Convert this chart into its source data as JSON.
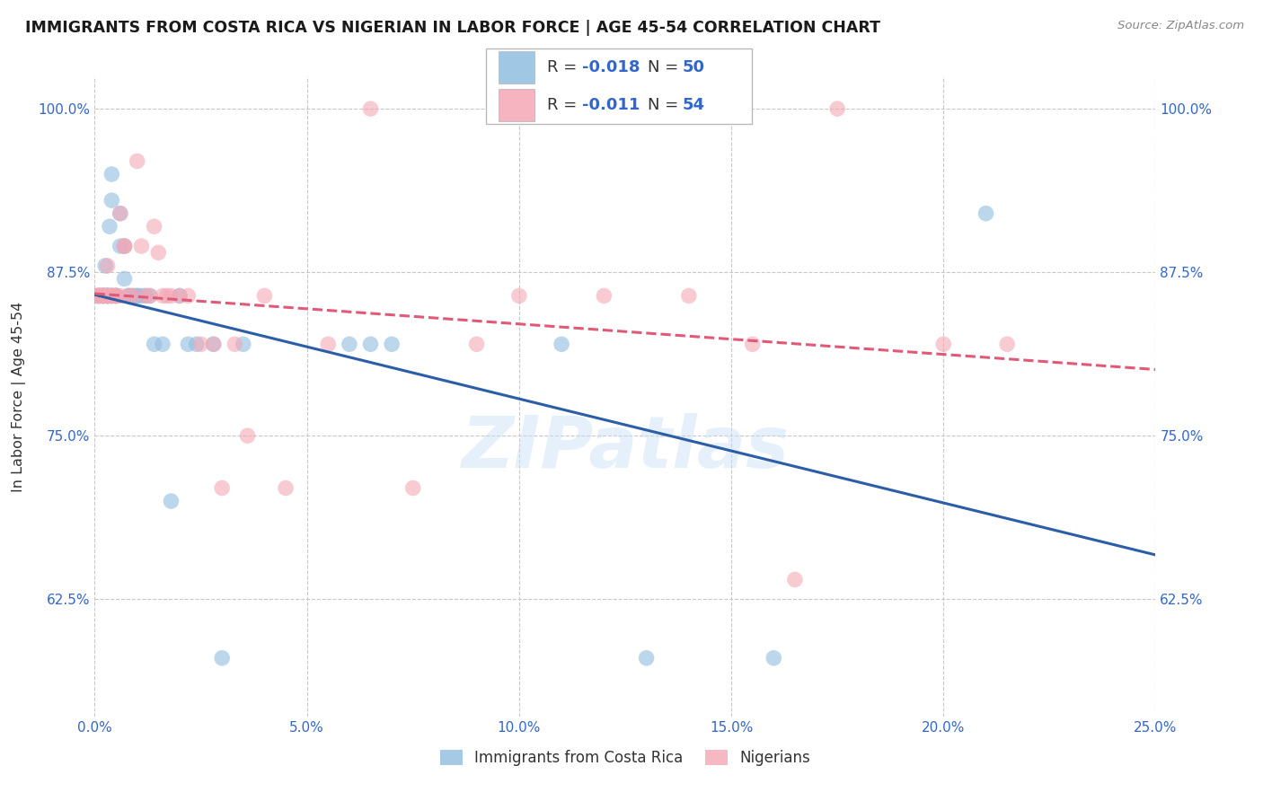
{
  "title": "IMMIGRANTS FROM COSTA RICA VS NIGERIAN IN LABOR FORCE | AGE 45-54 CORRELATION CHART",
  "source": "Source: ZipAtlas.com",
  "ylabel": "In Labor Force | Age 45-54",
  "xlim": [
    0.0,
    0.25
  ],
  "ylim": [
    0.535,
    1.025
  ],
  "xticks": [
    0.0,
    0.05,
    0.1,
    0.15,
    0.2,
    0.25
  ],
  "xticklabels": [
    "0.0%",
    "5.0%",
    "10.0%",
    "15.0%",
    "20.0%",
    "25.0%"
  ],
  "yticks": [
    0.625,
    0.75,
    0.875,
    1.0
  ],
  "yticklabels": [
    "62.5%",
    "75.0%",
    "87.5%",
    "100.0%"
  ],
  "watermark": "ZIPatlas",
  "costa_rica_color": "#90bde0",
  "nigerian_color": "#f4a7b5",
  "costa_rica_line_color": "#2b5ea7",
  "nigerian_line_color": "#e05a78",
  "background_color": "#ffffff",
  "grid_color": "#c8c8c8",
  "title_color": "#1a1a1a",
  "axis_label_color": "#333333",
  "tick_label_color": "#3366cc",
  "r_costa_rica": -0.018,
  "n_costa_rica": 50,
  "r_nigerian": -0.011,
  "n_nigerian": 54,
  "costa_rica_x": [
    0.0005,
    0.001,
    0.001,
    0.0015,
    0.002,
    0.002,
    0.002,
    0.002,
    0.0025,
    0.003,
    0.003,
    0.003,
    0.003,
    0.003,
    0.0035,
    0.004,
    0.004,
    0.004,
    0.004,
    0.005,
    0.005,
    0.005,
    0.006,
    0.006,
    0.007,
    0.007,
    0.008,
    0.008,
    0.009,
    0.01,
    0.01,
    0.011,
    0.012,
    0.013,
    0.014,
    0.016,
    0.018,
    0.02,
    0.022,
    0.024,
    0.028,
    0.03,
    0.035,
    0.06,
    0.065,
    0.07,
    0.11,
    0.13,
    0.16,
    0.21
  ],
  "costa_rica_y": [
    0.857,
    0.857,
    0.857,
    0.857,
    0.857,
    0.857,
    0.857,
    0.857,
    0.88,
    0.857,
    0.857,
    0.857,
    0.857,
    0.857,
    0.91,
    0.857,
    0.857,
    0.93,
    0.95,
    0.857,
    0.857,
    0.857,
    0.92,
    0.895,
    0.895,
    0.87,
    0.857,
    0.857,
    0.857,
    0.857,
    0.857,
    0.857,
    0.857,
    0.857,
    0.82,
    0.82,
    0.7,
    0.857,
    0.82,
    0.82,
    0.82,
    0.58,
    0.82,
    0.82,
    0.82,
    0.82,
    0.82,
    0.58,
    0.58,
    0.92
  ],
  "nigerian_x": [
    0.0005,
    0.001,
    0.001,
    0.001,
    0.002,
    0.002,
    0.002,
    0.002,
    0.003,
    0.003,
    0.003,
    0.003,
    0.003,
    0.004,
    0.004,
    0.004,
    0.005,
    0.005,
    0.006,
    0.006,
    0.007,
    0.007,
    0.008,
    0.009,
    0.01,
    0.011,
    0.012,
    0.013,
    0.014,
    0.015,
    0.016,
    0.017,
    0.018,
    0.02,
    0.022,
    0.025,
    0.028,
    0.03,
    0.033,
    0.036,
    0.04,
    0.045,
    0.055,
    0.065,
    0.075,
    0.09,
    0.1,
    0.12,
    0.14,
    0.155,
    0.165,
    0.175,
    0.2,
    0.215
  ],
  "nigerian_y": [
    0.857,
    0.857,
    0.857,
    0.857,
    0.857,
    0.857,
    0.857,
    0.857,
    0.857,
    0.857,
    0.857,
    0.857,
    0.88,
    0.857,
    0.857,
    0.857,
    0.857,
    0.857,
    0.92,
    0.857,
    0.895,
    0.895,
    0.857,
    0.857,
    0.96,
    0.895,
    0.857,
    0.857,
    0.91,
    0.89,
    0.857,
    0.857,
    0.857,
    0.857,
    0.857,
    0.82,
    0.82,
    0.71,
    0.82,
    0.75,
    0.857,
    0.71,
    0.82,
    1.0,
    0.71,
    0.82,
    0.857,
    0.857,
    0.857,
    0.82,
    0.64,
    1.0,
    0.82,
    0.82
  ],
  "legend_r1": "R = ",
  "legend_v1": "-0.018",
  "legend_n1_label": "N = ",
  "legend_n1": "50",
  "legend_r2": "R = ",
  "legend_v2": "-0.011",
  "legend_n2_label": "N = ",
  "legend_n2": "54"
}
